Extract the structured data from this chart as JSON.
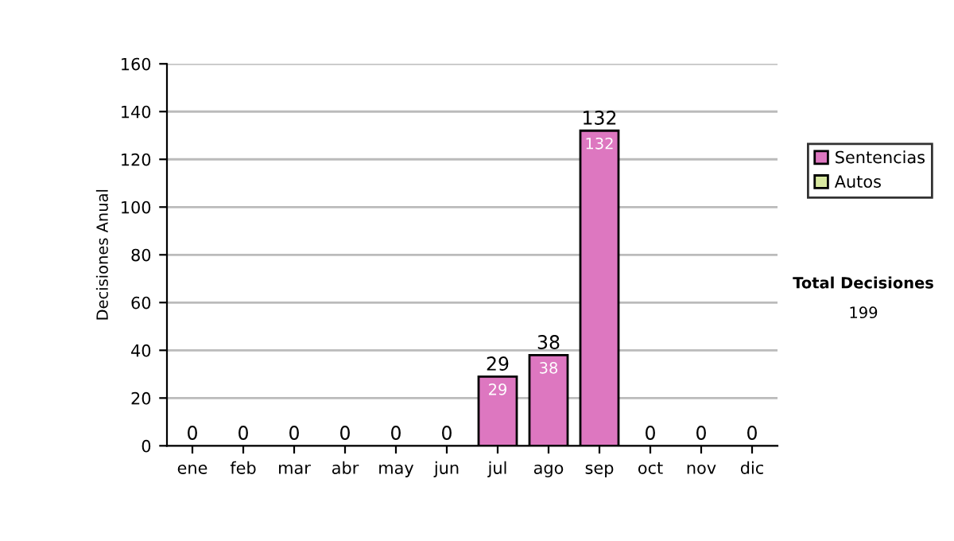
{
  "chart_data": {
    "type": "bar",
    "stacked": true,
    "ylabel": "Decisiones Anual",
    "categories": [
      "ene",
      "feb",
      "mar",
      "abr",
      "may",
      "jun",
      "jul",
      "ago",
      "sep",
      "oct",
      "nov",
      "dic"
    ],
    "series": [
      {
        "name": "Sentencias",
        "color": "#dd77c0",
        "values": [
          0,
          0,
          0,
          0,
          0,
          0,
          29,
          38,
          132,
          0,
          0,
          0
        ],
        "value_labels": [
          null,
          null,
          null,
          null,
          null,
          null,
          "29",
          "38",
          "132",
          null,
          null,
          null
        ]
      },
      {
        "name": "Autos",
        "color": "#d8e8a0",
        "values": [
          0,
          0,
          0,
          0,
          0,
          0,
          0,
          0,
          0,
          0,
          0,
          0
        ]
      }
    ],
    "totals": [
      "0",
      "0",
      "0",
      "0",
      "0",
      "0",
      "29",
      "38",
      "132",
      "0",
      "0",
      "0"
    ],
    "ylim": [
      0,
      160
    ],
    "yticks": [
      0,
      20,
      40,
      60,
      80,
      100,
      120,
      140,
      160
    ],
    "grid": "y",
    "legend": "right",
    "annotations": [
      "Total Decisiones",
      "199"
    ]
  }
}
